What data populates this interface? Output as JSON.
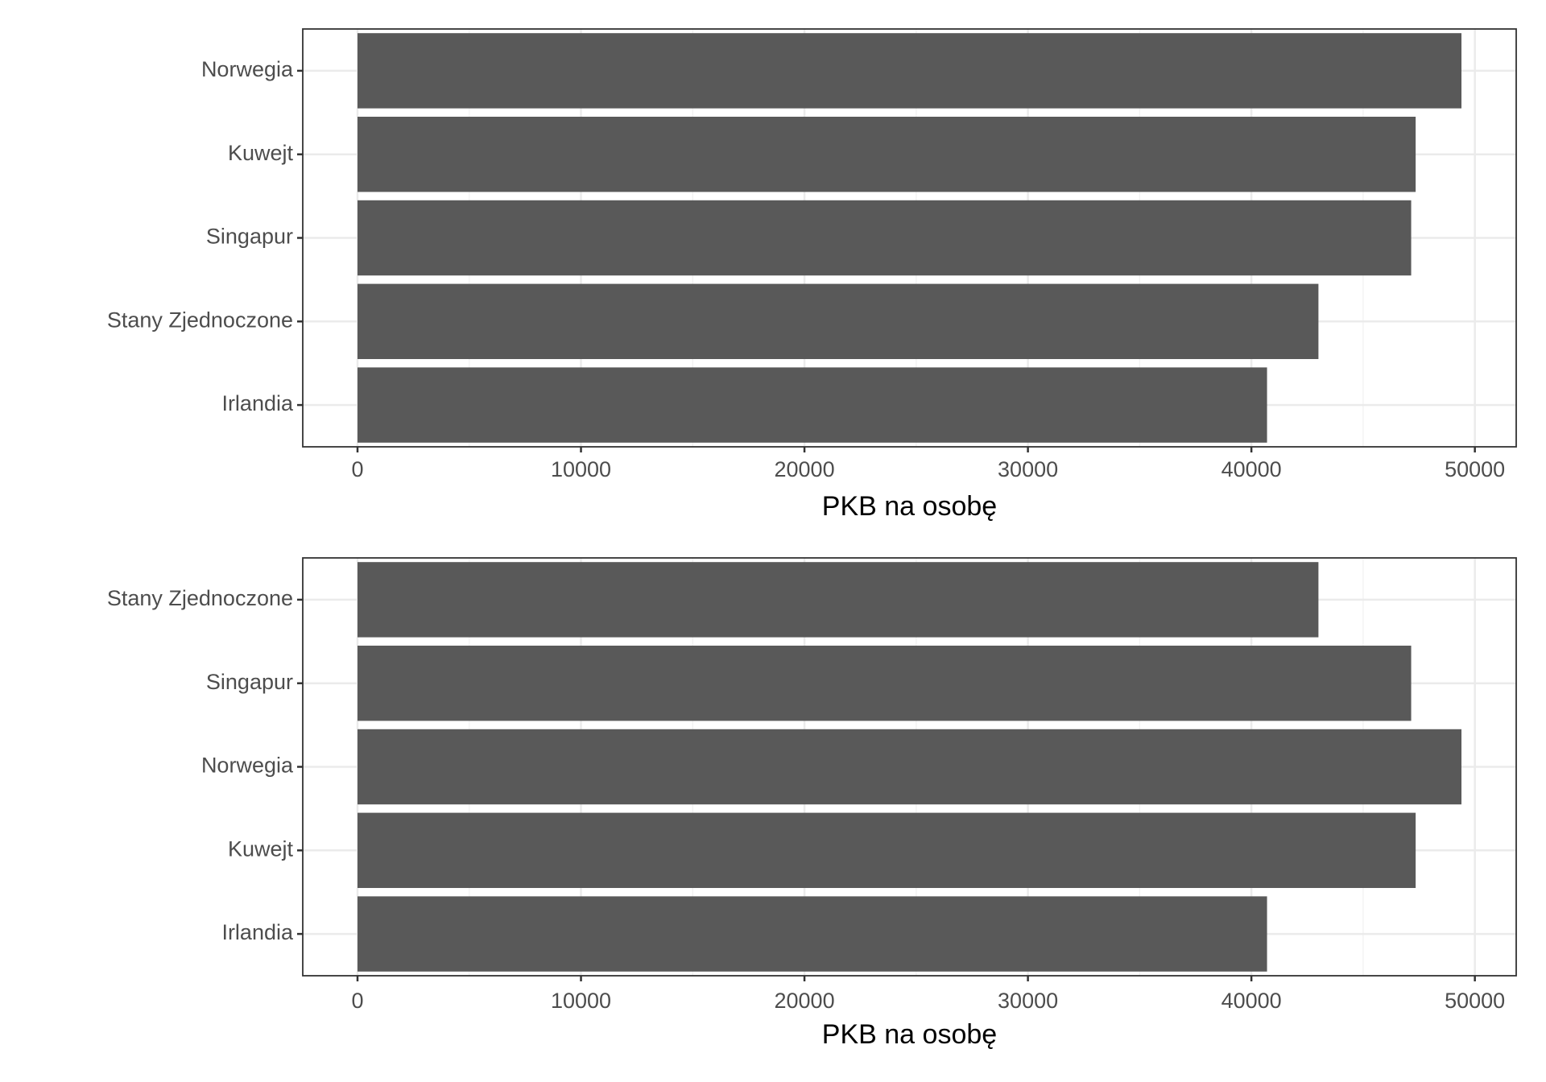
{
  "chart_data": [
    {
      "type": "bar",
      "orientation": "horizontal",
      "categories": [
        "Norwegia",
        "Kuwejt",
        "Singapur",
        "Stany Zjednoczone",
        "Irlandia"
      ],
      "values": [
        49400,
        47350,
        47150,
        43000,
        40700
      ],
      "color": "#595959",
      "xlabel": "PKB na osobę",
      "xlim": [
        -2450,
        51850
      ],
      "xticks": [
        0,
        10000,
        20000,
        30000,
        40000,
        50000
      ],
      "grid": true
    },
    {
      "type": "bar",
      "orientation": "horizontal",
      "categories": [
        "Stany Zjednoczone",
        "Singapur",
        "Norwegia",
        "Kuwejt",
        "Irlandia"
      ],
      "values": [
        43000,
        47150,
        49400,
        47350,
        40700
      ],
      "color": "#595959",
      "xlabel": "PKB na osobę",
      "xlim": [
        -2450,
        51850
      ],
      "xticks": [
        0,
        10000,
        20000,
        30000,
        40000,
        50000
      ],
      "grid": true
    }
  ]
}
